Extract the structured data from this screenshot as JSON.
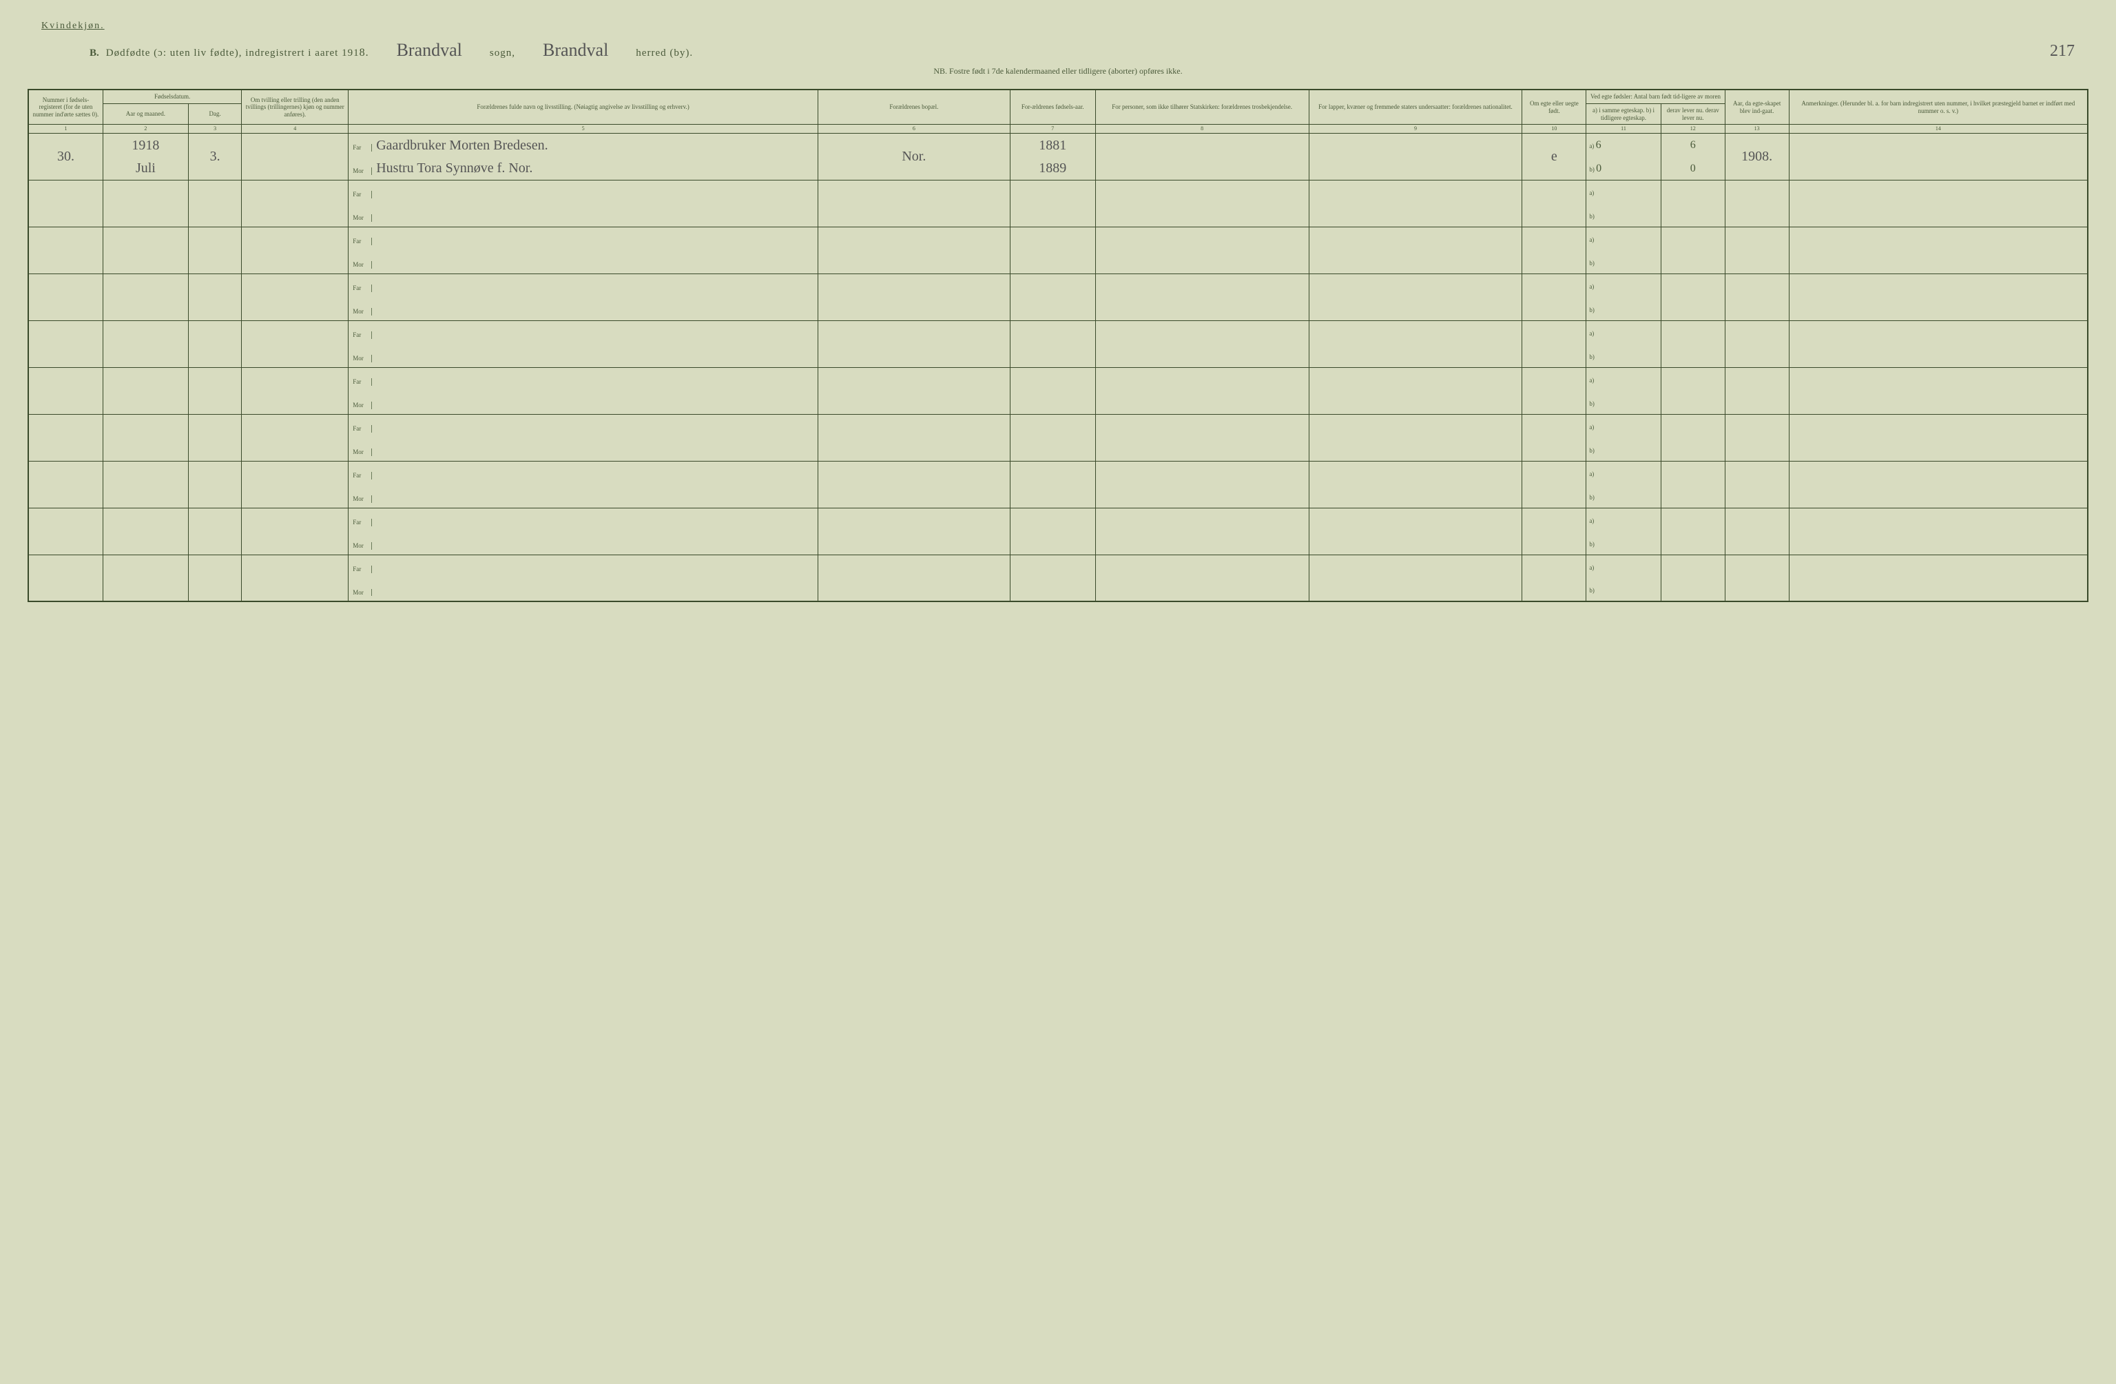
{
  "header": {
    "gender": "Kvindekjøn.",
    "section_letter": "B.",
    "title_main": "Dødfødte (ɔ: uten liv fødte), indregistrert i aaret 191",
    "year_digit": "8.",
    "sogn_value": "Brandval",
    "sogn_label": "sogn,",
    "herred_value": "Brandval",
    "herred_label": "herred (by).",
    "page_number": "217",
    "nb_text": "NB.  Fostre født i 7de kalendermaaned eller tidligere (aborter) opføres ikke."
  },
  "columns": {
    "c1": "Nummer i fødsels-registeret (for de uten nummer ind'ørte sættes 0).",
    "c2_3_top": "Fødselsdatum.",
    "c2": "Aar og maaned.",
    "c3": "Dag.",
    "c4": "Om tvilling eller trilling (den anden tvillings (trillingernes) kjøn og nummer anføres).",
    "c5": "Forældrenes fulde navn og livsstilling. (Nøiagtig angivelse av livsstilling og erhverv.)",
    "c6": "Forældrenes bopæl.",
    "c7": "For-ældrenes fødsels-aar.",
    "c8": "For personer, som ikke tilhører Statskirken: forældrenes trosbekjendelse.",
    "c9": "For lapper, kvæner og fremmede staters undersaatter: forældrenes nationalitet.",
    "c10": "Om egte eller uegte født.",
    "c11_12_top": "Ved egte fødsler: Antal barn født tid-ligere av moren",
    "c11": "a) i samme egteskap. b) i tidligere egteskap.",
    "c12": "derav lever nu. derav lever nu.",
    "c13": "Aar, da egte-skapet blev ind-gaat.",
    "c14": "Anmerkninger. (Herunder bl. a. for barn indregistrert uten nummer, i hvilket præstegjeld barnet er indført med nummer o. s. v.)"
  },
  "col_nums": [
    "1",
    "2",
    "3",
    "4",
    "5",
    "6",
    "7",
    "8",
    "9",
    "10",
    "11",
    "12",
    "13",
    "14"
  ],
  "far_label": "Far",
  "mor_label": "Mor",
  "ab_a": "a)",
  "ab_b": "b)",
  "entries": [
    {
      "num": "30.",
      "year": "1918",
      "month": "Juli",
      "day": "3.",
      "far_name": "Gaardbruker Morten Bredesen.",
      "mor_name": "Hustru Tora Synnøve f. Nor.",
      "bopael": "Nor.",
      "far_year": "1881",
      "mor_year": "1889",
      "egte": "e",
      "a_same": "6",
      "a_lever": "6",
      "b_same": "0",
      "b_lever": "0",
      "egteskab_aar": "1908."
    }
  ]
}
